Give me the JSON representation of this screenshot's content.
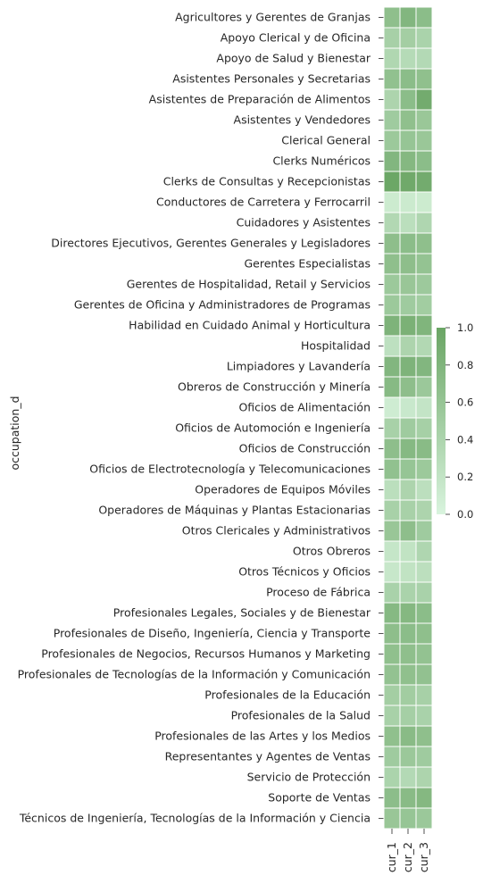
{
  "chart_data": {
    "type": "heatmap",
    "ylabel": "occupation_d",
    "xlabel": "",
    "columns": [
      "cur_1",
      "cur_2",
      "cur_3"
    ],
    "rows": [
      "Agricultores y Gerentes de Granjas",
      "Apoyo Clerical y de Oficina",
      "Apoyo de Salud y Bienestar",
      "Asistentes Personales y Secretarias",
      "Asistentes de Preparación de Alimentos",
      "Asistentes y Vendedores",
      "Clerical General",
      "Clerks Numéricos",
      "Clerks de Consultas y Recepcionistas",
      "Conductores de Carretera y Ferrocarril",
      "Cuidadores y Asistentes",
      "Directores Ejecutivos, Gerentes Generales y Legisladores",
      "Gerentes Especialistas",
      "Gerentes de Hospitalidad, Retail y Servicios",
      "Gerentes de Oficina y Administradores de Programas",
      "Habilidad en Cuidado Animal y Horticultura",
      "Hospitalidad",
      "Limpiadores y Lavandería",
      "Obreros de Construcción y Minería",
      "Oficios de Alimentación",
      "Oficios de Automoción e Ingeniería",
      "Oficios de Construcción",
      "Oficios de Electrotecnología y Telecomunicaciones",
      "Operadores de Equipos Móviles",
      "Operadores de Máquinas y Plantas Estacionarias",
      "Otros Clericales y Administrativos",
      "Otros Obreros",
      "Otros Técnicos y Oficios",
      "Proceso de Fábrica",
      "Profesionales Legales, Sociales y de Bienestar",
      "Profesionales de Diseño, Ingeniería, Ciencia y Transporte",
      "Profesionales de Negocios, Recursos Humanos y Marketing",
      "Profesionales de Tecnologías de la Información y Comunicación",
      "Profesionales de la Educación",
      "Profesionales de la Salud",
      "Profesionales de las Artes y los Medios",
      "Representantes y Agentes de Ventas",
      "Servicio de Protección",
      "Soporte de Ventas",
      "Técnicos de Ingeniería, Tecnologías de la Información y Ciencia"
    ],
    "values": [
      [
        0.67,
        0.78,
        0.7
      ],
      [
        0.45,
        0.48,
        0.42
      ],
      [
        0.37,
        0.32,
        0.34
      ],
      [
        0.65,
        0.7,
        0.66
      ],
      [
        0.4,
        0.7,
        0.92
      ],
      [
        0.52,
        0.66,
        0.57
      ],
      [
        0.55,
        0.6,
        0.57
      ],
      [
        0.78,
        0.76,
        0.7
      ],
      [
        0.98,
        0.95,
        0.92
      ],
      [
        0.12,
        0.13,
        0.12
      ],
      [
        0.35,
        0.27,
        0.38
      ],
      [
        0.68,
        0.7,
        0.67
      ],
      [
        0.67,
        0.68,
        0.62
      ],
      [
        0.55,
        0.58,
        0.54
      ],
      [
        0.55,
        0.52,
        0.5
      ],
      [
        0.82,
        0.85,
        0.8
      ],
      [
        0.25,
        0.4,
        0.35
      ],
      [
        0.78,
        0.82,
        0.78
      ],
      [
        0.74,
        0.68,
        0.56
      ],
      [
        0.1,
        0.15,
        0.2
      ],
      [
        0.44,
        0.52,
        0.46
      ],
      [
        0.68,
        0.75,
        0.72
      ],
      [
        0.65,
        0.6,
        0.55
      ],
      [
        0.27,
        0.4,
        0.26
      ],
      [
        0.44,
        0.44,
        0.4
      ],
      [
        0.58,
        0.68,
        0.52
      ],
      [
        0.18,
        0.22,
        0.38
      ],
      [
        0.16,
        0.22,
        0.26
      ],
      [
        0.43,
        0.42,
        0.43
      ],
      [
        0.75,
        0.76,
        0.7
      ],
      [
        0.68,
        0.7,
        0.67
      ],
      [
        0.66,
        0.67,
        0.63
      ],
      [
        0.63,
        0.66,
        0.64
      ],
      [
        0.48,
        0.5,
        0.45
      ],
      [
        0.44,
        0.47,
        0.43
      ],
      [
        0.66,
        0.72,
        0.67
      ],
      [
        0.52,
        0.56,
        0.52
      ],
      [
        0.41,
        0.34,
        0.4
      ],
      [
        0.69,
        0.72,
        0.76
      ],
      [
        0.58,
        0.6,
        0.56
      ]
    ],
    "colorbar": {
      "min": 0.0,
      "max": 1.0,
      "ticks": [
        "0.0",
        "0.2",
        "0.4",
        "0.6",
        "0.8",
        "1.0"
      ],
      "colors": [
        "#d9f4de",
        "#6aa564"
      ]
    }
  }
}
